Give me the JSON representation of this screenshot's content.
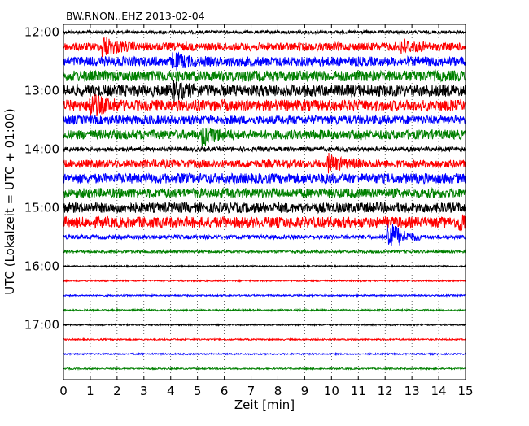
{
  "chart_data": {
    "type": "line",
    "title": "BW.RNON..EHZ 2013-02-04",
    "xlabel": "Zeit  [min]",
    "ylabel": "UTC (Lokalzeit = UTC + 01:00)",
    "xlim": [
      0,
      15
    ],
    "x_ticks": [
      "0",
      "1",
      "2",
      "3",
      "4",
      "5",
      "6",
      "7",
      "8",
      "9",
      "10",
      "11",
      "12",
      "13",
      "14",
      "15"
    ],
    "y_ticks": [
      "12:00",
      "13:00",
      "14:00",
      "15:00",
      "16:00",
      "17:00"
    ],
    "grid": "vertical dotted",
    "colors": [
      "#000000",
      "#ff0000",
      "#0000ff",
      "#008000"
    ],
    "series": [
      {
        "start": "12:00",
        "color": "#000000",
        "amplitude": 0.22,
        "events": []
      },
      {
        "start": "12:15",
        "color": "#ff0000",
        "amplitude": 0.55,
        "events": [
          {
            "at": 1.45,
            "strength": 1.3
          },
          {
            "at": 12.6,
            "strength": 0.9
          }
        ]
      },
      {
        "start": "12:30",
        "color": "#0000ff",
        "amplitude": 0.65,
        "events": [
          {
            "at": 4.1,
            "strength": 0.8
          }
        ]
      },
      {
        "start": "12:45",
        "color": "#008000",
        "amplitude": 0.75,
        "events": []
      },
      {
        "start": "13:00",
        "color": "#000000",
        "amplitude": 0.8,
        "events": [
          {
            "at": 4.1,
            "strength": 0.8
          }
        ]
      },
      {
        "start": "13:15",
        "color": "#ff0000",
        "amplitude": 0.75,
        "events": [
          {
            "at": 1.0,
            "strength": 1.3
          }
        ]
      },
      {
        "start": "13:30",
        "color": "#0000ff",
        "amplitude": 0.6,
        "events": []
      },
      {
        "start": "13:45",
        "color": "#008000",
        "amplitude": 0.65,
        "events": [
          {
            "at": 5.2,
            "strength": 1.2
          }
        ]
      },
      {
        "start": "14:00",
        "color": "#000000",
        "amplitude": 0.3,
        "events": []
      },
      {
        "start": "14:15",
        "color": "#ff0000",
        "amplitude": 0.55,
        "events": [
          {
            "at": 9.9,
            "strength": 1.0
          }
        ]
      },
      {
        "start": "14:30",
        "color": "#0000ff",
        "amplitude": 0.7,
        "events": []
      },
      {
        "start": "14:45",
        "color": "#008000",
        "amplitude": 0.65,
        "events": []
      },
      {
        "start": "15:00",
        "color": "#000000",
        "amplitude": 0.7,
        "events": []
      },
      {
        "start": "15:15",
        "color": "#ff0000",
        "amplitude": 0.75,
        "events": [
          {
            "at": 14.8,
            "strength": 1.0
          }
        ]
      },
      {
        "start": "15:30",
        "color": "#0000ff",
        "amplitude": 0.28,
        "events": [
          {
            "at": 12.1,
            "strength": 2.5
          }
        ]
      },
      {
        "start": "15:45",
        "color": "#008000",
        "amplitude": 0.18,
        "events": []
      },
      {
        "start": "16:00",
        "color": "#000000",
        "amplitude": 0.1,
        "events": []
      },
      {
        "start": "16:15",
        "color": "#ff0000",
        "amplitude": 0.1,
        "events": []
      },
      {
        "start": "16:30",
        "color": "#0000ff",
        "amplitude": 0.1,
        "events": []
      },
      {
        "start": "16:45",
        "color": "#008000",
        "amplitude": 0.12,
        "events": []
      },
      {
        "start": "17:00",
        "color": "#000000",
        "amplitude": 0.1,
        "events": []
      },
      {
        "start": "17:15",
        "color": "#ff0000",
        "amplitude": 0.1,
        "events": []
      },
      {
        "start": "17:30",
        "color": "#0000ff",
        "amplitude": 0.1,
        "events": []
      },
      {
        "start": "17:45",
        "color": "#008000",
        "amplitude": 0.1,
        "events": []
      }
    ]
  }
}
